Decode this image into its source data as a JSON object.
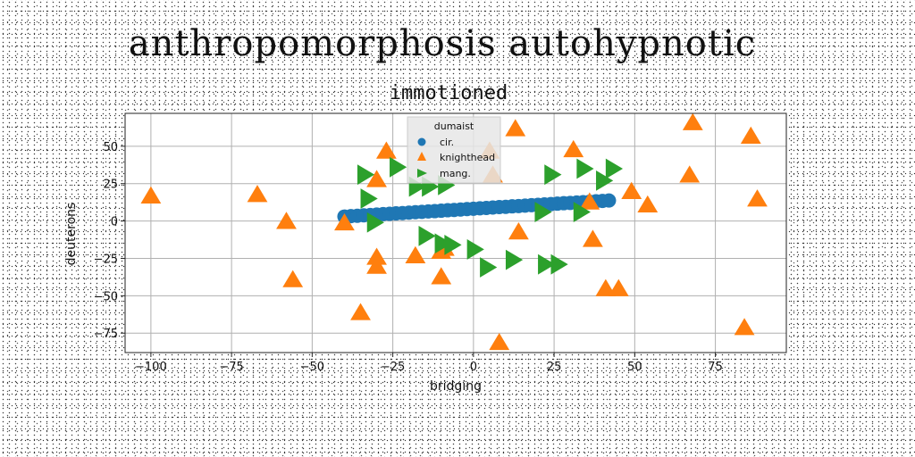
{
  "figure": {
    "title": "anthropomorphosis autohypnotic"
  },
  "chart_data": {
    "type": "scatter",
    "title": "immotioned",
    "xlabel": "bridging",
    "ylabel": "deuterons",
    "xlim": [
      -108,
      97
    ],
    "ylim": [
      -88,
      72
    ],
    "xticks": [
      -100,
      -75,
      -50,
      -25,
      0,
      25,
      50,
      75
    ],
    "yticks": [
      -75,
      -50,
      -25,
      0,
      25,
      50
    ],
    "xtick_labels": [
      "−100",
      "−75",
      "−50",
      "−25",
      "0",
      "25",
      "50",
      "75"
    ],
    "ytick_labels": [
      "−75",
      "−50",
      "−25",
      "0",
      "25",
      "50"
    ],
    "grid": true,
    "legend": {
      "title": "dumaist",
      "placement": "top-center"
    },
    "series": [
      {
        "name": "cir.",
        "marker": "circle",
        "color": "#1f77b4",
        "points": [
          [
            -40,
            3
          ],
          [
            -38,
            3.3
          ],
          [
            -36,
            3.5
          ],
          [
            -34,
            3.8
          ],
          [
            -32,
            4
          ],
          [
            -30,
            4.3
          ],
          [
            -28,
            4.6
          ],
          [
            -26,
            4.8
          ],
          [
            -24,
            5.1
          ],
          [
            -22,
            5.3
          ],
          [
            -20,
            5.6
          ],
          [
            -18,
            5.9
          ],
          [
            -16,
            6.1
          ],
          [
            -14,
            6.4
          ],
          [
            -12,
            6.6
          ],
          [
            -10,
            6.9
          ],
          [
            -8,
            7.2
          ],
          [
            -6,
            7.4
          ],
          [
            -4,
            7.7
          ],
          [
            -2,
            8
          ],
          [
            0,
            8.2
          ],
          [
            2,
            8.5
          ],
          [
            4,
            8.7
          ],
          [
            6,
            9
          ],
          [
            8,
            9.3
          ],
          [
            10,
            9.5
          ],
          [
            12,
            9.8
          ],
          [
            14,
            10
          ],
          [
            16,
            10.3
          ],
          [
            18,
            10.6
          ],
          [
            20,
            10.8
          ],
          [
            22,
            11.1
          ],
          [
            24,
            11.3
          ],
          [
            26,
            11.6
          ],
          [
            28,
            11.9
          ],
          [
            30,
            12.1
          ],
          [
            32,
            12.4
          ],
          [
            34,
            12.6
          ],
          [
            36,
            12.9
          ],
          [
            38,
            13.2
          ],
          [
            40,
            13.4
          ],
          [
            42,
            13.7
          ]
        ]
      },
      {
        "name": "knighthead",
        "marker": "triangle-up",
        "color": "#ff7f0e",
        "points": [
          [
            -100,
            16
          ],
          [
            -67,
            17
          ],
          [
            -58,
            -1
          ],
          [
            -56,
            -40
          ],
          [
            -40,
            -2
          ],
          [
            -35,
            -62
          ],
          [
            -30,
            27
          ],
          [
            -30,
            -25
          ],
          [
            -30,
            -31
          ],
          [
            -27,
            46
          ],
          [
            -18,
            -24
          ],
          [
            -10,
            -38
          ],
          [
            -10,
            -21
          ],
          [
            -9,
            -19
          ],
          [
            5,
            46
          ],
          [
            6,
            30
          ],
          [
            8,
            -82
          ],
          [
            13,
            61
          ],
          [
            14,
            -8
          ],
          [
            31,
            47
          ],
          [
            36,
            12
          ],
          [
            37,
            -13
          ],
          [
            41,
            -46
          ],
          [
            45,
            -46
          ],
          [
            49,
            19
          ],
          [
            54,
            10
          ],
          [
            67,
            30
          ],
          [
            68,
            65
          ],
          [
            84,
            -72
          ],
          [
            86,
            56
          ],
          [
            88,
            14
          ]
        ]
      },
      {
        "name": "mang.",
        "marker": "triangle-right",
        "color": "#2ca02c",
        "points": [
          [
            -34,
            31
          ],
          [
            -33,
            15
          ],
          [
            -31,
            -1
          ],
          [
            -24,
            36
          ],
          [
            -18,
            23
          ],
          [
            -14,
            23
          ],
          [
            -9,
            24
          ],
          [
            -15,
            -10
          ],
          [
            -10,
            -15
          ],
          [
            -7,
            -16
          ],
          [
            0,
            -19
          ],
          [
            4,
            -31
          ],
          [
            12,
            -26
          ],
          [
            22,
            -29
          ],
          [
            26,
            -29
          ],
          [
            21,
            6
          ],
          [
            24,
            31
          ],
          [
            33,
            6
          ],
          [
            34,
            35
          ],
          [
            40,
            27
          ],
          [
            43,
            35
          ]
        ]
      }
    ]
  }
}
